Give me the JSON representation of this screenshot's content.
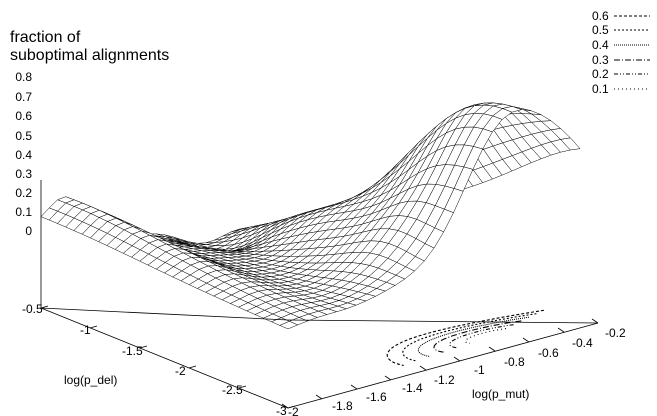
{
  "chart_data": {
    "type": "surface3d",
    "zlabel_lines": [
      "fraction of",
      "suboptimal alignments"
    ],
    "xlabel": "log(p_mut)",
    "ylabel": "log(p_del)",
    "zlim": [
      0,
      0.8
    ],
    "xlim": [
      -2.0,
      -0.2
    ],
    "ylim": [
      -3.0,
      -0.5
    ],
    "z_ticks": [
      "0.8",
      "0.7",
      "0.6",
      "0.5",
      "0.4",
      "0.3",
      "0.2",
      "0.1",
      "0"
    ],
    "x_ticks": [
      "-2",
      "-1.8",
      "-1.6",
      "-1.4",
      "-1.2",
      "-1",
      "-0.8",
      "-0.6",
      "-0.4",
      "-0.2"
    ],
    "y_ticks": [
      "-3",
      "-2.5",
      "-2",
      "-1.5",
      "-1",
      "-0.5"
    ],
    "contour_levels": [
      {
        "label": "0.6",
        "dash": "3,2"
      },
      {
        "label": "0.5",
        "dash": "2,2"
      },
      {
        "label": "0.4",
        "dash": "1,1"
      },
      {
        "label": "0.3",
        "dash": "6,2,1,2"
      },
      {
        "label": "0.2",
        "dash": "4,2,1,2,1,2"
      },
      {
        "label": "0.1",
        "dash": "1,3"
      }
    ],
    "surface": {
      "grid_size": 30,
      "peak": {
        "log_p_mut": -0.55,
        "log_p_del": -2.9,
        "fraction": 0.78
      },
      "left_edge_fraction": 0.19,
      "right_edge_fraction": 0.0
    },
    "grid": false
  }
}
